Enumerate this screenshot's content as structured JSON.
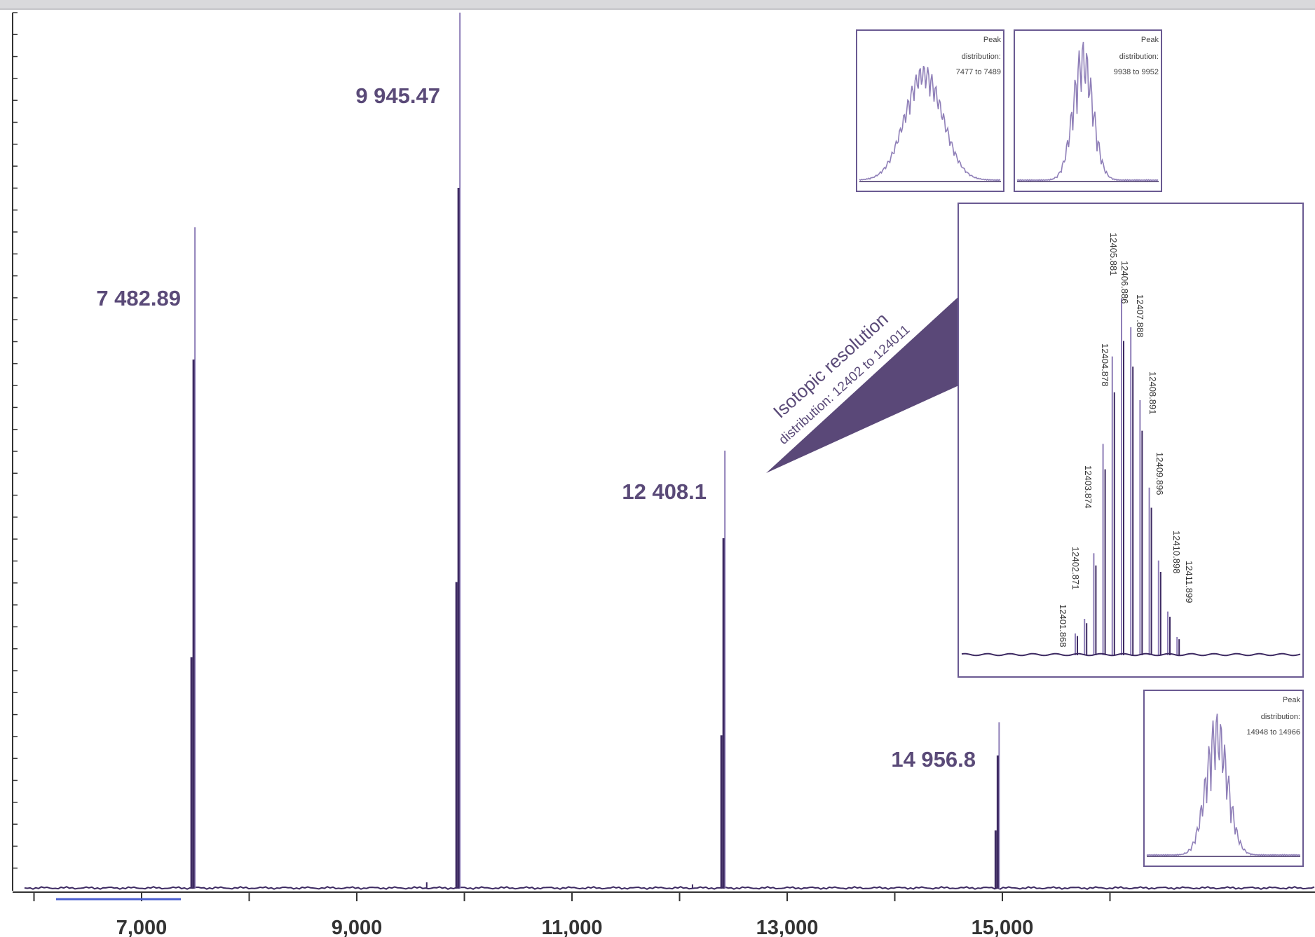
{
  "colors": {
    "line": "#3d2a62",
    "line_light": "#8f7fb8",
    "label": "#5a4a78",
    "frame": "#6a5a92",
    "callout": "#5a4878",
    "axis": "#333333"
  },
  "chart_data": [
    {
      "type": "line",
      "x_ticks": [
        7000,
        9000,
        11000,
        13000,
        15000
      ],
      "x_tick_labels": [
        "7,000",
        "9,000",
        "11,000",
        "13,000",
        "15,000"
      ],
      "xlim": [
        6000,
        16200
      ],
      "ylim": [
        0,
        1.0
      ],
      "grid": false,
      "peaks": [
        {
          "x": 7482.89,
          "y": 0.755,
          "label": "7 482.89"
        },
        {
          "x": 9945.47,
          "y": 1.0,
          "label": "9 945.47"
        },
        {
          "x": 12408.1,
          "y": 0.5,
          "label": "12 408.1"
        },
        {
          "x": 14956.8,
          "y": 0.19,
          "label": "14 956.8"
        }
      ]
    },
    {
      "type": "line",
      "inset": "Peak distribution: 7477 to 7489",
      "title_lines": [
        "Peak",
        "distribution:",
        "7477 to 7489"
      ]
    },
    {
      "type": "line",
      "inset": "Peak distribution: 9938 to 9952",
      "title_lines": [
        "Peak",
        "distribution:",
        "9938 to 9952"
      ]
    },
    {
      "type": "line",
      "inset": "Isotopic resolution distribution: 12402 to 124011",
      "callout_title": "Isotopic resolution",
      "callout_subtitle": "distribution: 12402 to 124011",
      "peak_labels": [
        "12401.868",
        "12402.871",
        "12403.874",
        "12404.878",
        "12405.881",
        "12406.886",
        "12407.888",
        "12408.891",
        "12409.896",
        "12410.898",
        "12411.899"
      ]
    },
    {
      "type": "line",
      "inset": "Peak distribution: 14948 to 14966",
      "title_lines": [
        "Peak",
        "distribution:",
        "14948 to 14966"
      ]
    }
  ]
}
